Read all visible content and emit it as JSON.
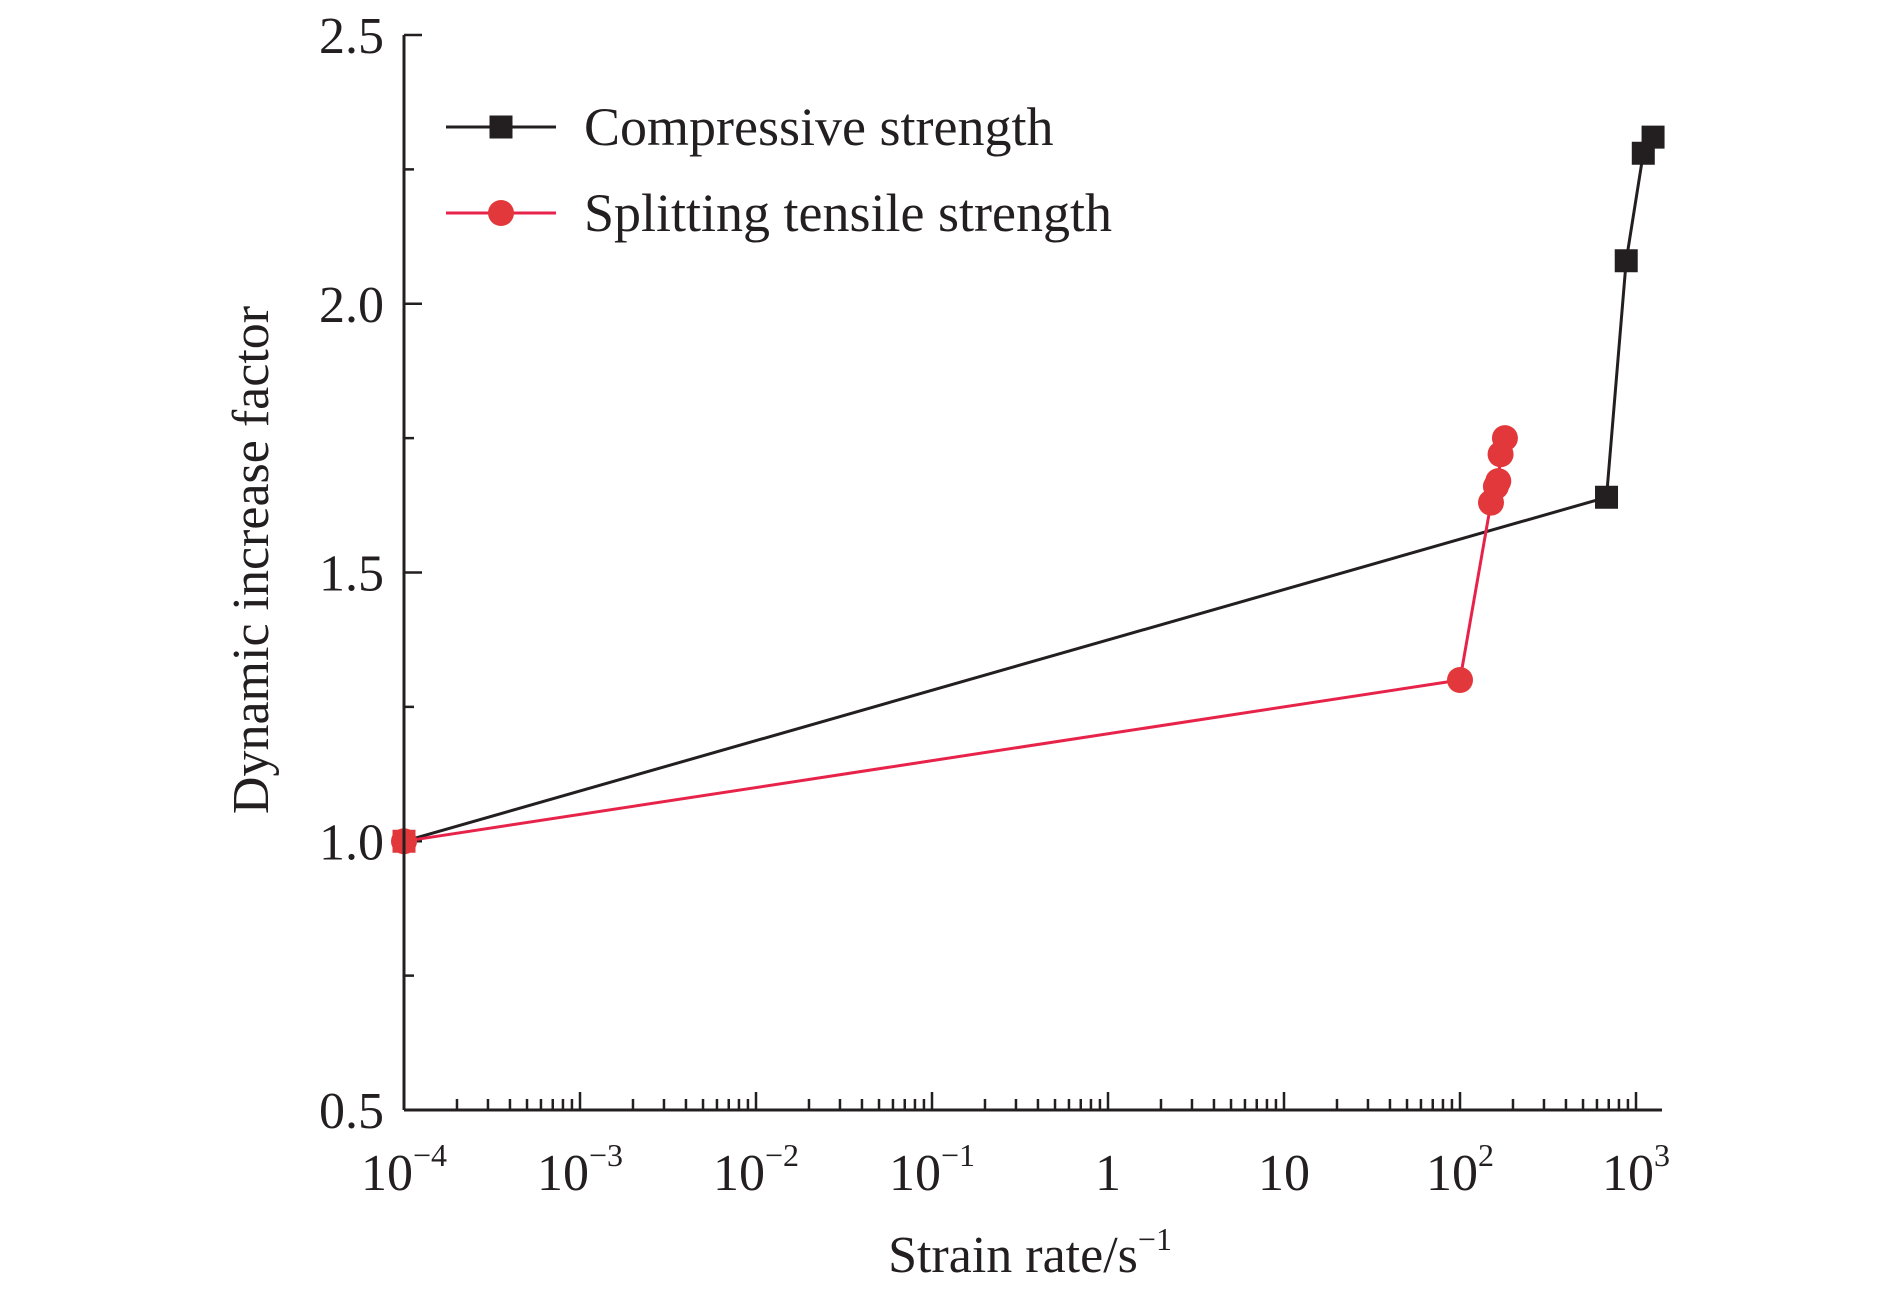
{
  "chart_data": {
    "type": "line",
    "title": "",
    "xlabel": "Strain rate/s",
    "xlabel_sup": "−1",
    "ylabel": "Dynamic increase factor",
    "xscale": "log",
    "xlim": [
      0.0001,
      1600
    ],
    "ylim": [
      0.5,
      2.5
    ],
    "x_ticks": [
      {
        "base": "10",
        "sup": "−4"
      },
      {
        "base": "10",
        "sup": "−3"
      },
      {
        "base": "10",
        "sup": "−2"
      },
      {
        "base": "10",
        "sup": "−1"
      },
      {
        "base": "1",
        "sup": ""
      },
      {
        "base": "10",
        "sup": ""
      },
      {
        "base": "10",
        "sup": "2"
      },
      {
        "base": "10",
        "sup": "3"
      }
    ],
    "y_ticks": [
      "0.5",
      "1.0",
      "1.5",
      "2.0",
      "2.5"
    ],
    "legend_position": "top-left",
    "series": [
      {
        "name": "Compressive strength",
        "color": "#231f20",
        "marker": "square",
        "x": [
          0.0001,
          680,
          880,
          1100,
          1250
        ],
        "y": [
          1.0,
          1.64,
          2.08,
          2.28,
          2.31
        ]
      },
      {
        "name": "Splitting tensile strength",
        "color": "#e3383b",
        "line_color": "#e8234a",
        "marker": "circle",
        "x": [
          0.0001,
          100,
          150,
          160,
          165,
          170,
          180
        ],
        "y": [
          1.0,
          1.3,
          1.63,
          1.66,
          1.67,
          1.72,
          1.75
        ]
      }
    ]
  }
}
